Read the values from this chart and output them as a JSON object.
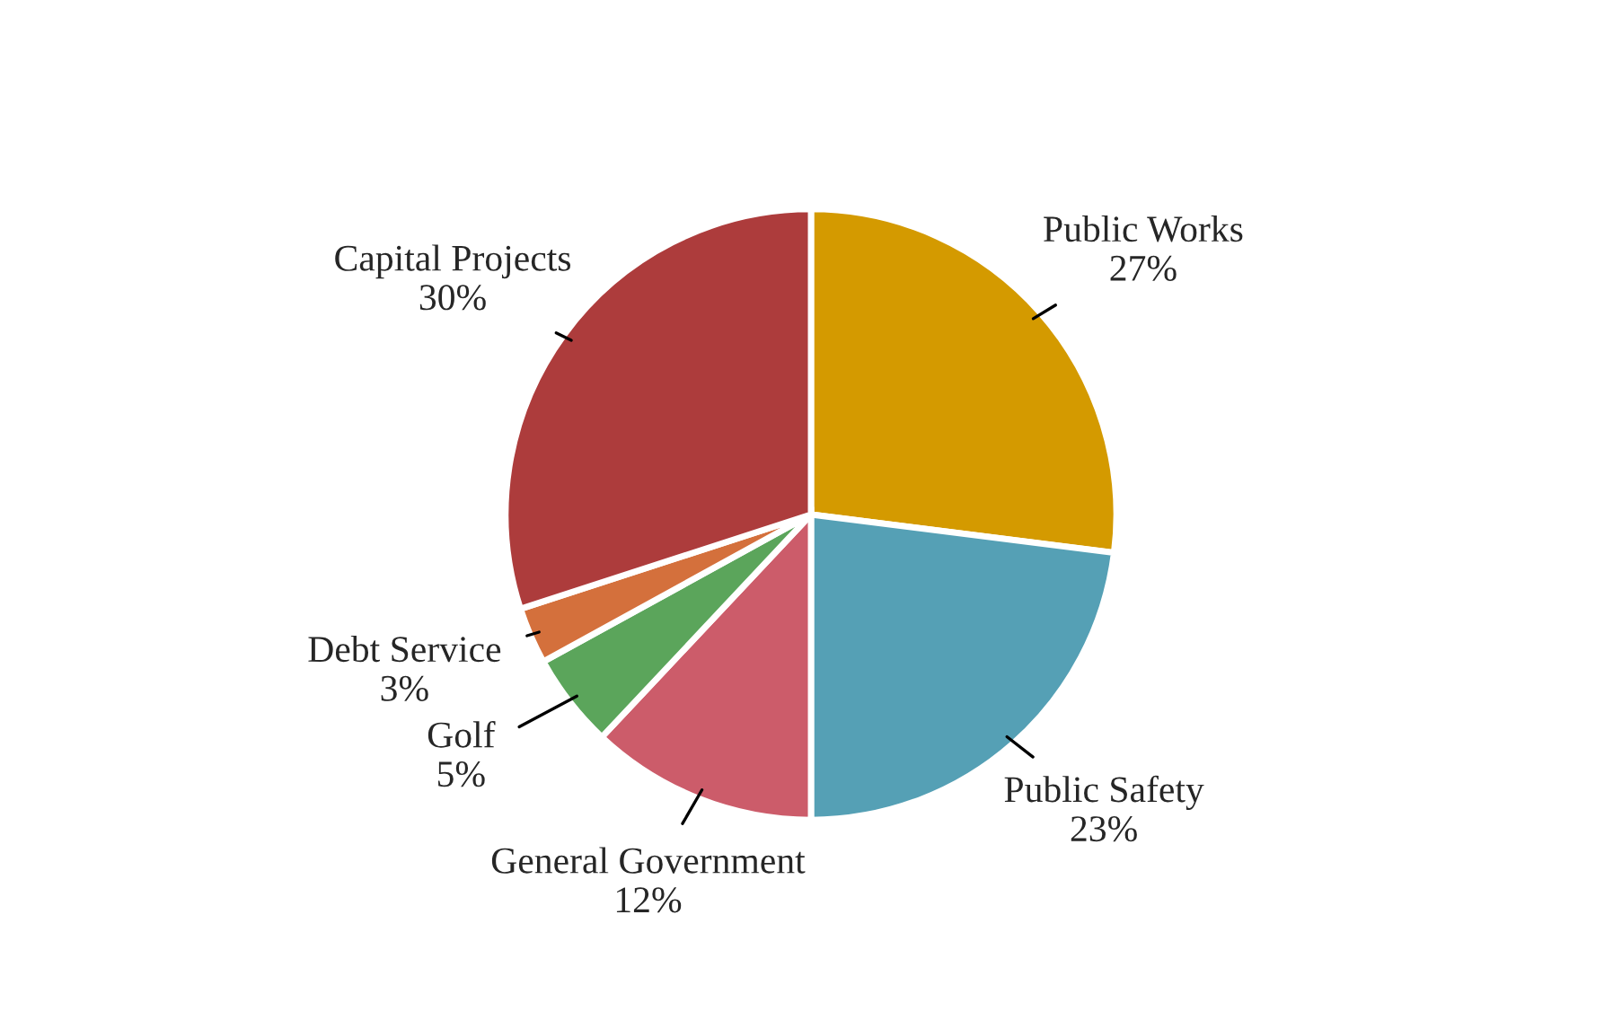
{
  "chart_data": {
    "type": "pie",
    "categories": [
      "Public Works",
      "Public Safety",
      "General Government",
      "Golf",
      "Debt Service",
      "Capital Projects"
    ],
    "values": [
      27,
      23,
      12,
      5,
      3,
      30
    ],
    "value_labels": [
      "27%",
      "23%",
      "12%",
      "5%",
      "3%",
      "30%"
    ],
    "colors": [
      "#d49a00",
      "#55a0b5",
      "#cc5c6a",
      "#5ba55b",
      "#d4703c",
      "#ad3c3c"
    ],
    "legend": false
  }
}
